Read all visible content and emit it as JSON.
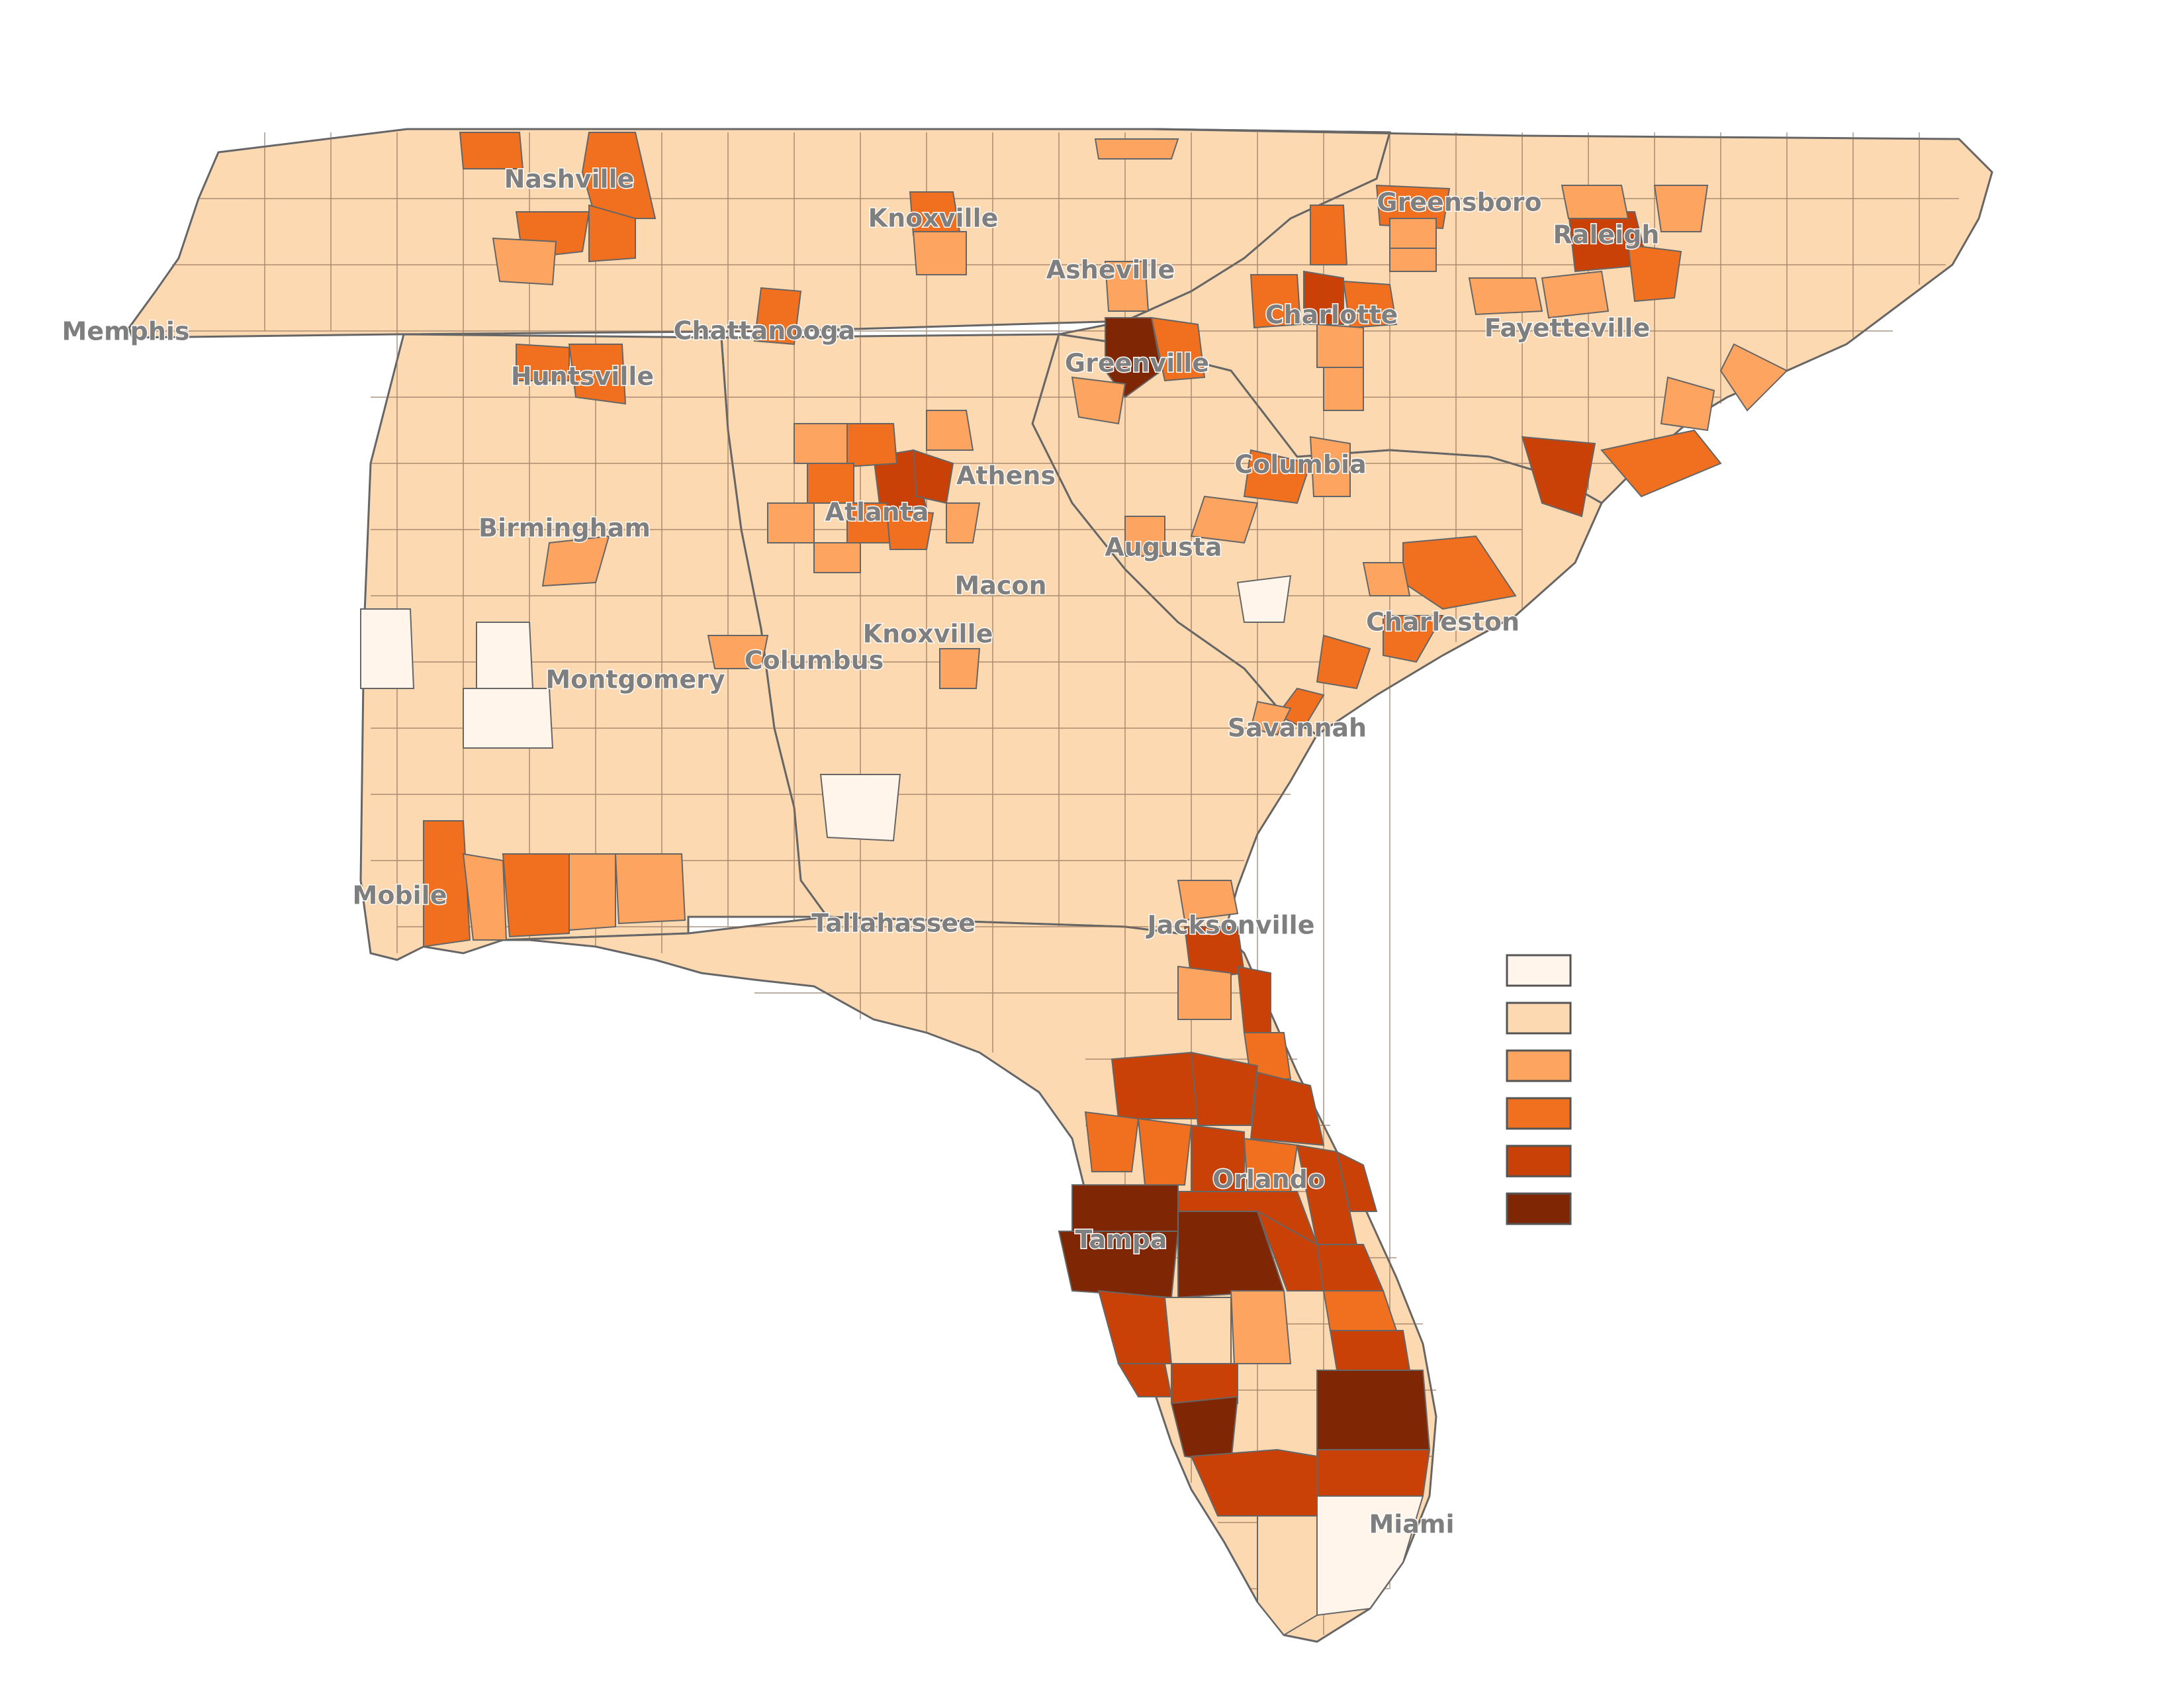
{
  "map": {
    "colors": {
      "class_1": "#fff5eb",
      "class_2": "#fdd9b2",
      "class_3": "#fda560",
      "class_4": "#f07020",
      "class_5": "#c94106",
      "class_6": "#7f2704",
      "county_border": "#8a6a55",
      "state_border": "#666666"
    },
    "legend": {
      "swatches": [
        "class_1",
        "class_2",
        "class_3",
        "class_4",
        "class_5",
        "class_6"
      ]
    },
    "cities": [
      {
        "id": "nashville",
        "label": "Nashville"
      },
      {
        "id": "knoxville-tn",
        "label": "Knoxville"
      },
      {
        "id": "greensboro",
        "label": "Greensboro"
      },
      {
        "id": "raleigh",
        "label": "Raleigh"
      },
      {
        "id": "asheville",
        "label": "Asheville"
      },
      {
        "id": "memphis",
        "label": "Memphis"
      },
      {
        "id": "chattanooga",
        "label": "Chattanooga"
      },
      {
        "id": "charlotte",
        "label": "Charlotte"
      },
      {
        "id": "fayetteville",
        "label": "Fayetteville"
      },
      {
        "id": "huntsville",
        "label": "Huntsville"
      },
      {
        "id": "greenville",
        "label": "Greenville"
      },
      {
        "id": "athens",
        "label": "Athens"
      },
      {
        "id": "columbia",
        "label": "Columbia"
      },
      {
        "id": "atlanta",
        "label": "Atlanta"
      },
      {
        "id": "birmingham",
        "label": "Birmingham"
      },
      {
        "id": "augusta",
        "label": "Augusta"
      },
      {
        "id": "macon",
        "label": "Macon"
      },
      {
        "id": "charleston",
        "label": "Charleston"
      },
      {
        "id": "knoxville-ga",
        "label": "Knoxville"
      },
      {
        "id": "columbus",
        "label": "Columbus"
      },
      {
        "id": "montgomery",
        "label": "Montgomery"
      },
      {
        "id": "savannah",
        "label": "Savannah"
      },
      {
        "id": "mobile",
        "label": "Mobile"
      },
      {
        "id": "tallahassee",
        "label": "Tallahassee"
      },
      {
        "id": "jacksonville",
        "label": "Jacksonville"
      },
      {
        "id": "orlando",
        "label": "Orlando"
      },
      {
        "id": "tampa",
        "label": "Tampa"
      },
      {
        "id": "miami",
        "label": "Miami"
      }
    ]
  }
}
